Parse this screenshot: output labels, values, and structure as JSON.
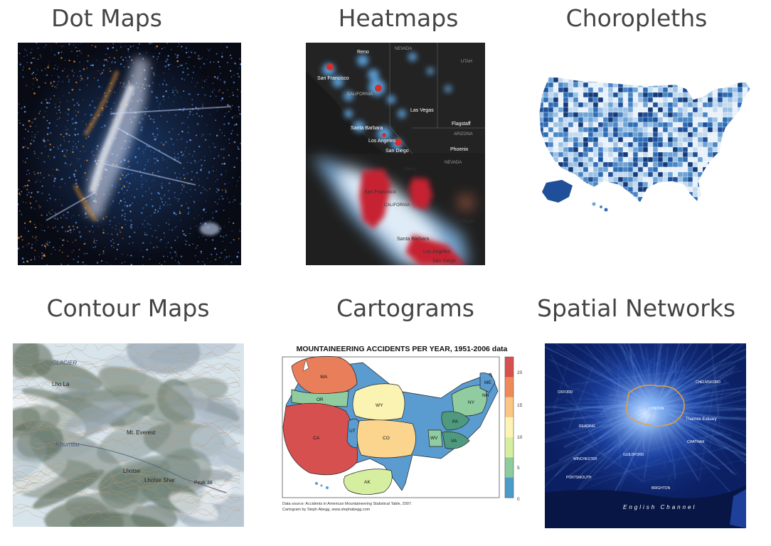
{
  "slide": {
    "cells": [
      {
        "title": "Dot Maps"
      },
      {
        "title": "Heatmaps"
      },
      {
        "title": "Choropleths"
      },
      {
        "title": "Contour Maps"
      },
      {
        "title": "Cartograms"
      },
      {
        "title": "Spatial Networks"
      }
    ]
  },
  "heatmap": {
    "labels": [
      "Reno",
      "NEVADA",
      "UTAH",
      "San Francisco",
      "CALIFORNIA",
      "Las Vegas",
      "Flagstaff",
      "ARIZONA",
      "Santa Barbara",
      "Los Angeles",
      "San Diego",
      "Phoenix"
    ],
    "labels_bottom": [
      "NEVADA",
      "Reno",
      "San Francisco",
      "CALIFORNIA",
      "Las Vegas",
      "Santa Barbara",
      "Los Angeles",
      "San Diego"
    ]
  },
  "contour": {
    "labels": [
      "GLACIER",
      "Lho La",
      "Khumbu",
      "Mt. Everest",
      "Lhotse",
      "Lhotse Shar",
      "Peak 38"
    ]
  },
  "cartogram": {
    "title": "MOUNTAINEERING ACCIDENTS PER YEAR, 1951-2006 data",
    "state_labels": [
      "WA",
      "OR",
      "CA",
      "WY",
      "CO",
      "UT",
      "AK",
      "NY",
      "PA",
      "VA",
      "WV",
      "ME",
      "NH"
    ],
    "colorbar_ticks": [
      "20",
      "15",
      "10",
      "5",
      "0"
    ],
    "colorbar_colors": [
      "#d6504d",
      "#ee8a5a",
      "#f9c783",
      "#fcf4b5",
      "#d6eea0",
      "#8fcb9d",
      "#4b9dc9"
    ],
    "source_line1": "Data source: Accidents in American Mountaineering Statistical Table, 2007.",
    "source_line2": "Cartogram by Steph Abegg, www.stephabegg.com"
  },
  "network": {
    "labels": [
      "LONDON",
      "Thames Estuary",
      "CHELMSFORD",
      "OXFORD",
      "READING",
      "GUILDFORD",
      "BRIGHTON",
      "PORTSMOUTH",
      "WINCHESTER",
      "CHATHAM",
      "English Channel"
    ]
  },
  "colors": {
    "title_text": "#444444",
    "dotmap_bg": "#080a14",
    "network_bg": "#0a1c5a",
    "heatmap_bg": "#1c1c1c"
  }
}
